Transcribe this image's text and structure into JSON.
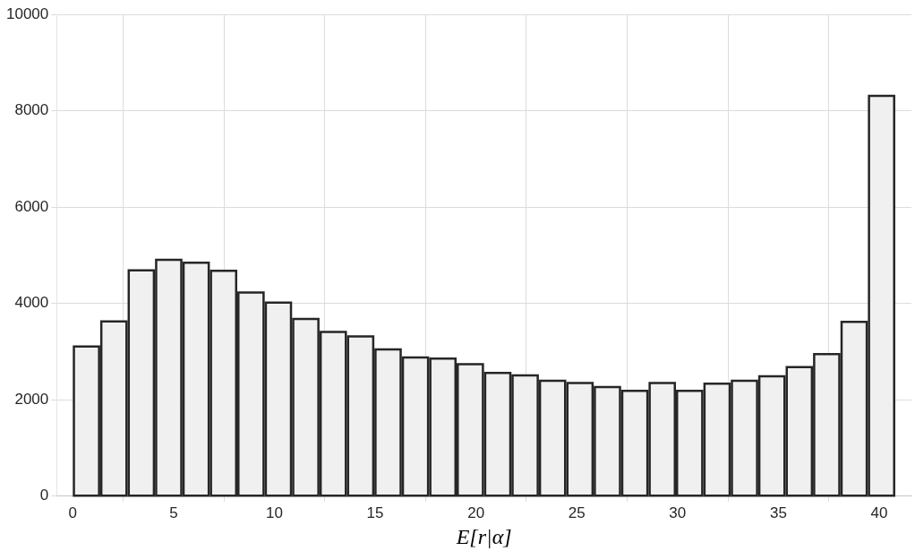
{
  "chart_data": {
    "type": "histogram",
    "xlabel": "E[r|α]",
    "bins": [
      0,
      1.36,
      2.72,
      4.08,
      5.44,
      6.8,
      8.16,
      9.52,
      10.88,
      12.24,
      13.6,
      14.96,
      16.32,
      17.68,
      19.04,
      20.4,
      21.76,
      23.12,
      24.48,
      25.84,
      27.2,
      28.56,
      29.92,
      31.28,
      32.64,
      34,
      35.36,
      36.72,
      38.08,
      39.44,
      40.8
    ],
    "values": [
      3130,
      3650,
      4710,
      4930,
      4870,
      4700,
      4250,
      4040,
      3700,
      3430,
      3340,
      3070,
      2900,
      2880,
      2760,
      2580,
      2530,
      2420,
      2370,
      2290,
      2210,
      2370,
      2210,
      2360,
      2420,
      2510,
      2700,
      2970,
      3640,
      8330
    ],
    "color": "#f0f0f0",
    "xlim": [
      -0.8,
      41.6
    ],
    "xticks": [
      0,
      5,
      10,
      15,
      20,
      25,
      30,
      35,
      40
    ],
    "ylim": [
      0,
      10000
    ],
    "yticks": [
      0,
      2000,
      4000,
      6000,
      8000,
      10000
    ],
    "grid": true
  }
}
